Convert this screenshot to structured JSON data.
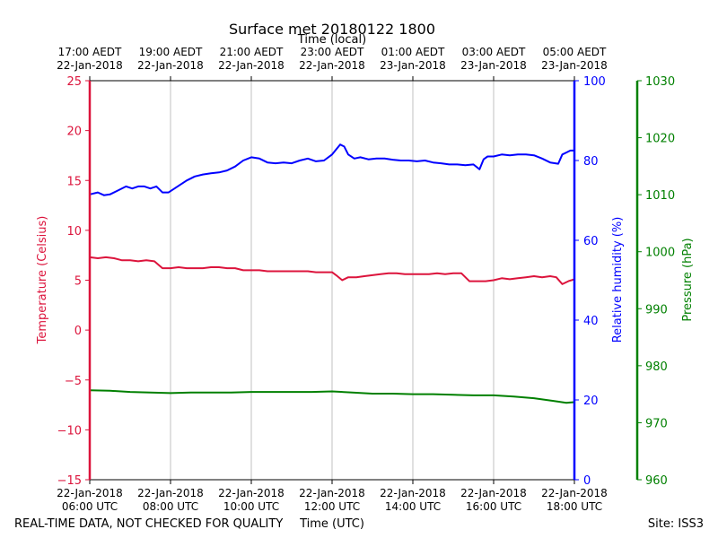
{
  "chart_data": {
    "type": "line",
    "title": "Surface met 20180122 1800",
    "top_axis_label": "Time (local)",
    "xlabel": "Time (UTC)",
    "footer_left": "REAL-TIME DATA, NOT CHECKED FOR QUALITY",
    "footer_right": "Site: ISS3",
    "grid": "vertical",
    "bottom_ticks": [
      {
        "x": 0,
        "l1": "22-Jan-2018",
        "l2": "06:00 UTC"
      },
      {
        "x": 2,
        "l1": "22-Jan-2018",
        "l2": "08:00 UTC"
      },
      {
        "x": 4,
        "l1": "22-Jan-2018",
        "l2": "10:00 UTC"
      },
      {
        "x": 6,
        "l1": "22-Jan-2018",
        "l2": "12:00 UTC"
      },
      {
        "x": 8,
        "l1": "22-Jan-2018",
        "l2": "14:00 UTC"
      },
      {
        "x": 10,
        "l1": "22-Jan-2018",
        "l2": "16:00 UTC"
      },
      {
        "x": 12,
        "l1": "22-Jan-2018",
        "l2": "18:00 UTC"
      }
    ],
    "top_ticks": [
      {
        "x": 0,
        "l1": "17:00 AEDT",
        "l2": "22-Jan-2018"
      },
      {
        "x": 2,
        "l1": "19:00 AEDT",
        "l2": "22-Jan-2018"
      },
      {
        "x": 4,
        "l1": "21:00 AEDT",
        "l2": "22-Jan-2018"
      },
      {
        "x": 6,
        "l1": "23:00 AEDT",
        "l2": "22-Jan-2018"
      },
      {
        "x": 8,
        "l1": "01:00 AEDT",
        "l2": "23-Jan-2018"
      },
      {
        "x": 10,
        "l1": "03:00 AEDT",
        "l2": "23-Jan-2018"
      },
      {
        "x": 12,
        "l1": "05:00 AEDT",
        "l2": "23-Jan-2018"
      }
    ],
    "xlim": [
      0,
      12
    ],
    "axes": {
      "temperature": {
        "label": "Temperature (Celsius)",
        "color": "#dc143c",
        "lim": [
          -15,
          25
        ],
        "ticks": [
          25,
          20,
          15,
          10,
          5,
          0,
          -5,
          -10,
          -15
        ],
        "tick_labels": [
          "25",
          "20",
          "15",
          "10",
          "5",
          "0",
          "−5",
          "−10",
          "−15"
        ]
      },
      "humidity": {
        "label": "Relative humidity (%)",
        "color": "#0000ff",
        "lim": [
          0,
          100
        ],
        "ticks": [
          100,
          80,
          60,
          40,
          20,
          0
        ],
        "tick_labels": [
          "100",
          "80",
          "60",
          "40",
          "20",
          "0"
        ]
      },
      "pressure": {
        "label": "Pressure (hPa)",
        "color": "#008000",
        "lim": [
          960,
          1030
        ],
        "ticks": [
          1030,
          1020,
          1010,
          1000,
          990,
          980,
          970,
          960
        ],
        "tick_labels": [
          "1030",
          "1020",
          "1010",
          "1000",
          "990",
          "980",
          "970",
          "960"
        ]
      }
    },
    "series": [
      {
        "axis": "temperature",
        "color": "#dc143c",
        "x": [
          0,
          0.2,
          0.4,
          0.6,
          0.8,
          1.0,
          1.2,
          1.4,
          1.6,
          1.8,
          2.0,
          2.2,
          2.4,
          2.6,
          2.8,
          3.0,
          3.2,
          3.4,
          3.6,
          3.8,
          4.0,
          4.2,
          4.4,
          4.6,
          4.8,
          5.0,
          5.2,
          5.4,
          5.6,
          5.8,
          6.0,
          6.1,
          6.25,
          6.4,
          6.6,
          6.8,
          7.0,
          7.2,
          7.4,
          7.6,
          7.8,
          8.0,
          8.2,
          8.4,
          8.6,
          8.8,
          9.0,
          9.2,
          9.4,
          9.6,
          9.8,
          10.0,
          10.2,
          10.4,
          10.6,
          10.8,
          11.0,
          11.2,
          11.4,
          11.55,
          11.7,
          11.85,
          12.0
        ],
        "y": [
          7.3,
          7.2,
          7.3,
          7.2,
          7.0,
          7.0,
          6.9,
          7.0,
          6.9,
          6.2,
          6.2,
          6.3,
          6.2,
          6.2,
          6.2,
          6.3,
          6.3,
          6.2,
          6.2,
          6.0,
          6.0,
          6.0,
          5.9,
          5.9,
          5.9,
          5.9,
          5.9,
          5.9,
          5.8,
          5.8,
          5.8,
          5.5,
          5.0,
          5.3,
          5.3,
          5.4,
          5.5,
          5.6,
          5.7,
          5.7,
          5.6,
          5.6,
          5.6,
          5.6,
          5.7,
          5.6,
          5.7,
          5.7,
          4.9,
          4.9,
          4.9,
          5.0,
          5.2,
          5.1,
          5.2,
          5.3,
          5.4,
          5.3,
          5.4,
          5.3,
          4.6,
          4.9,
          5.1
        ]
      },
      {
        "axis": "humidity",
        "color": "#0000ff",
        "x": [
          0,
          0.2,
          0.35,
          0.5,
          0.7,
          0.9,
          1.05,
          1.2,
          1.35,
          1.5,
          1.65,
          1.8,
          1.95,
          2.1,
          2.25,
          2.4,
          2.6,
          2.8,
          3.0,
          3.2,
          3.4,
          3.6,
          3.8,
          4.0,
          4.2,
          4.4,
          4.6,
          4.8,
          5.0,
          5.2,
          5.4,
          5.6,
          5.8,
          6.0,
          6.2,
          6.3,
          6.4,
          6.55,
          6.7,
          6.9,
          7.1,
          7.3,
          7.5,
          7.7,
          7.9,
          8.1,
          8.3,
          8.5,
          8.7,
          8.9,
          9.1,
          9.3,
          9.5,
          9.65,
          9.75,
          9.85,
          10.0,
          10.2,
          10.4,
          10.6,
          10.8,
          11.0,
          11.2,
          11.4,
          11.6,
          11.7,
          11.8,
          11.9,
          12.0
        ],
        "y": [
          71.5,
          72.0,
          71.3,
          71.5,
          72.5,
          73.5,
          73.0,
          73.5,
          73.5,
          73.0,
          73.5,
          72.0,
          72.0,
          73.0,
          74.0,
          75.0,
          76.0,
          76.5,
          76.8,
          77.0,
          77.5,
          78.5,
          80.0,
          80.8,
          80.5,
          79.5,
          79.3,
          79.5,
          79.3,
          80.0,
          80.5,
          79.8,
          80.0,
          81.5,
          84.0,
          83.5,
          81.5,
          80.5,
          80.8,
          80.3,
          80.5,
          80.5,
          80.2,
          80.0,
          80.0,
          79.8,
          80.0,
          79.5,
          79.3,
          79.0,
          79.0,
          78.8,
          79.0,
          77.8,
          80.3,
          81.0,
          81.0,
          81.5,
          81.3,
          81.5,
          81.5,
          81.3,
          80.5,
          79.5,
          79.2,
          81.5,
          82.0,
          82.5,
          82.5
        ]
      },
      {
        "axis": "pressure",
        "color": "#008000",
        "x": [
          0,
          0.5,
          1.0,
          1.5,
          2.0,
          2.5,
          3.0,
          3.5,
          4.0,
          4.5,
          5.0,
          5.5,
          6.0,
          6.5,
          7.0,
          7.5,
          8.0,
          8.5,
          9.0,
          9.5,
          10.0,
          10.5,
          11.0,
          11.5,
          11.8,
          12.0
        ],
        "y": [
          975.7,
          975.6,
          975.4,
          975.3,
          975.2,
          975.3,
          975.3,
          975.3,
          975.4,
          975.4,
          975.4,
          975.4,
          975.5,
          975.3,
          975.1,
          975.1,
          975.0,
          975.0,
          974.9,
          974.8,
          974.8,
          974.6,
          974.3,
          973.8,
          973.5,
          973.6
        ]
      }
    ]
  }
}
